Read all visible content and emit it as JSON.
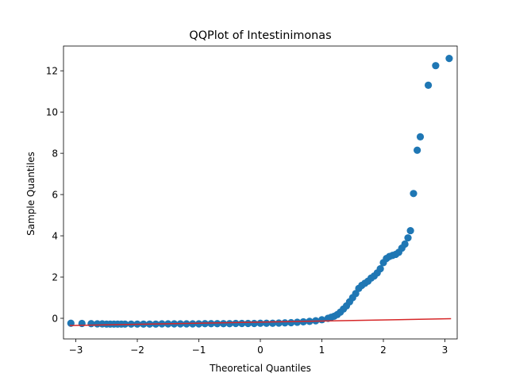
{
  "chart_data": {
    "type": "scatter",
    "title": "QQPlot of Intestinimonas",
    "xlabel": "Theoretical Quantiles",
    "ylabel": "Sample Quantiles",
    "xlim": [
      -3.2,
      3.2
    ],
    "ylim": [
      -1.0,
      13.2
    ],
    "xticks": [
      -3,
      -2,
      -1,
      0,
      1,
      2,
      3
    ],
    "xtick_labels": [
      "−3",
      "−2",
      "−1",
      "0",
      "1",
      "2",
      "3"
    ],
    "yticks": [
      0,
      2,
      4,
      6,
      8,
      10,
      12
    ],
    "ytick_labels": [
      "0",
      "2",
      "4",
      "6",
      "8",
      "10",
      "12"
    ],
    "grid": false,
    "marker_color": "#1f77b4",
    "line_color": "#d62728",
    "reference_line": {
      "x": [
        -3.1,
        3.1
      ],
      "y": [
        -0.35,
        -0.02
      ]
    },
    "series": [
      {
        "x": [
          -3.08,
          -2.9,
          -2.75,
          -2.65,
          -2.57,
          -2.5,
          -2.44,
          -2.38,
          -2.32,
          -2.26,
          -2.2,
          -2.1,
          -2.0,
          -1.9,
          -1.8,
          -1.7,
          -1.6,
          -1.5,
          -1.4,
          -1.3,
          -1.2,
          -1.1,
          -1.0,
          -0.9,
          -0.8,
          -0.7,
          -0.6,
          -0.5,
          -0.4,
          -0.3,
          -0.2,
          -0.1,
          0.0,
          0.1,
          0.2,
          0.3,
          0.4,
          0.5,
          0.6,
          0.7,
          0.8,
          0.9,
          1.0,
          1.1,
          1.15,
          1.2,
          1.25,
          1.3,
          1.35,
          1.4,
          1.45,
          1.5,
          1.55,
          1.6,
          1.65,
          1.7,
          1.75,
          1.8,
          1.85,
          1.9,
          1.95,
          2.0,
          2.05,
          2.1,
          2.15,
          2.2,
          2.25,
          2.3,
          2.35,
          2.4,
          2.44,
          2.49,
          2.55,
          2.6,
          2.73,
          2.85,
          3.07
        ],
        "y": [
          -0.24,
          -0.25,
          -0.26,
          -0.27,
          -0.27,
          -0.28,
          -0.28,
          -0.28,
          -0.28,
          -0.28,
          -0.28,
          -0.28,
          -0.28,
          -0.28,
          -0.28,
          -0.28,
          -0.27,
          -0.27,
          -0.27,
          -0.27,
          -0.27,
          -0.27,
          -0.27,
          -0.26,
          -0.26,
          -0.26,
          -0.26,
          -0.26,
          -0.25,
          -0.25,
          -0.25,
          -0.25,
          -0.24,
          -0.24,
          -0.24,
          -0.23,
          -0.22,
          -0.21,
          -0.19,
          -0.17,
          -0.15,
          -0.12,
          -0.07,
          0.0,
          0.05,
          0.1,
          0.18,
          0.3,
          0.45,
          0.6,
          0.8,
          1.0,
          1.2,
          1.45,
          1.6,
          1.7,
          1.8,
          1.95,
          2.05,
          2.2,
          2.4,
          2.7,
          2.9,
          3.0,
          3.05,
          3.1,
          3.2,
          3.4,
          3.6,
          3.9,
          4.25,
          6.05,
          8.15,
          8.8,
          11.3,
          12.25,
          12.6
        ]
      }
    ]
  }
}
